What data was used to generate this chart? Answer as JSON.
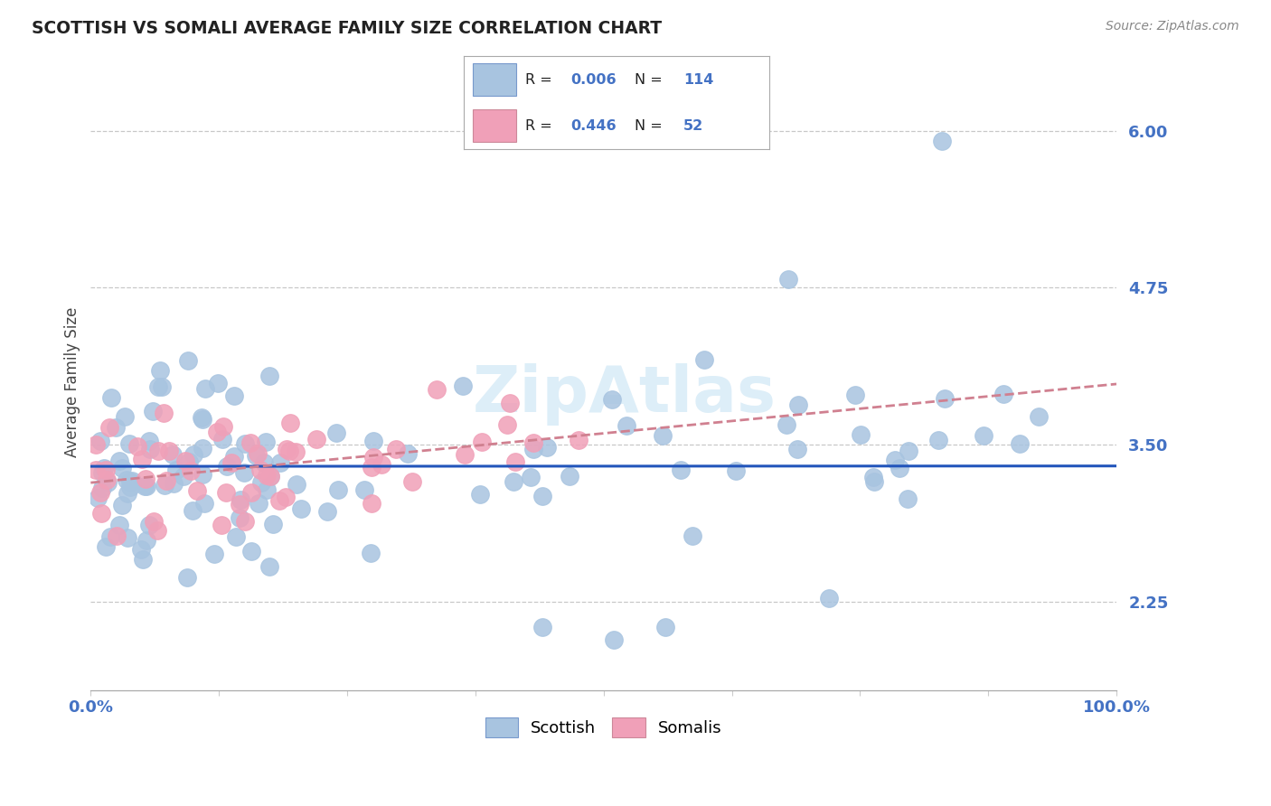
{
  "title": "SCOTTISH VS SOMALI AVERAGE FAMILY SIZE CORRELATION CHART",
  "source_text": "Source: ZipAtlas.com",
  "ylabel": "Average Family Size",
  "xlim": [
    0.0,
    1.0
  ],
  "ylim": [
    1.55,
    6.45
  ],
  "yticks": [
    2.25,
    3.5,
    4.75,
    6.0
  ],
  "ytick_labels": [
    "2.25",
    "3.50",
    "4.75",
    "6.00"
  ],
  "background_color": "#ffffff",
  "grid_color": "#c8c8c8",
  "scottish_color": "#a8c4e0",
  "somali_color": "#f0a0b8",
  "scottish_line_color": "#2255bb",
  "somali_line_color": "#d08090",
  "title_color": "#222222",
  "axis_label_color": "#4472c4",
  "legend_r_color": "#4472c4",
  "scottish_R": 0.006,
  "scottish_N": 114,
  "somali_R": 0.446,
  "somali_N": 52,
  "watermark_color": "#ddeef8",
  "watermark_text": "ZipAtlas"
}
